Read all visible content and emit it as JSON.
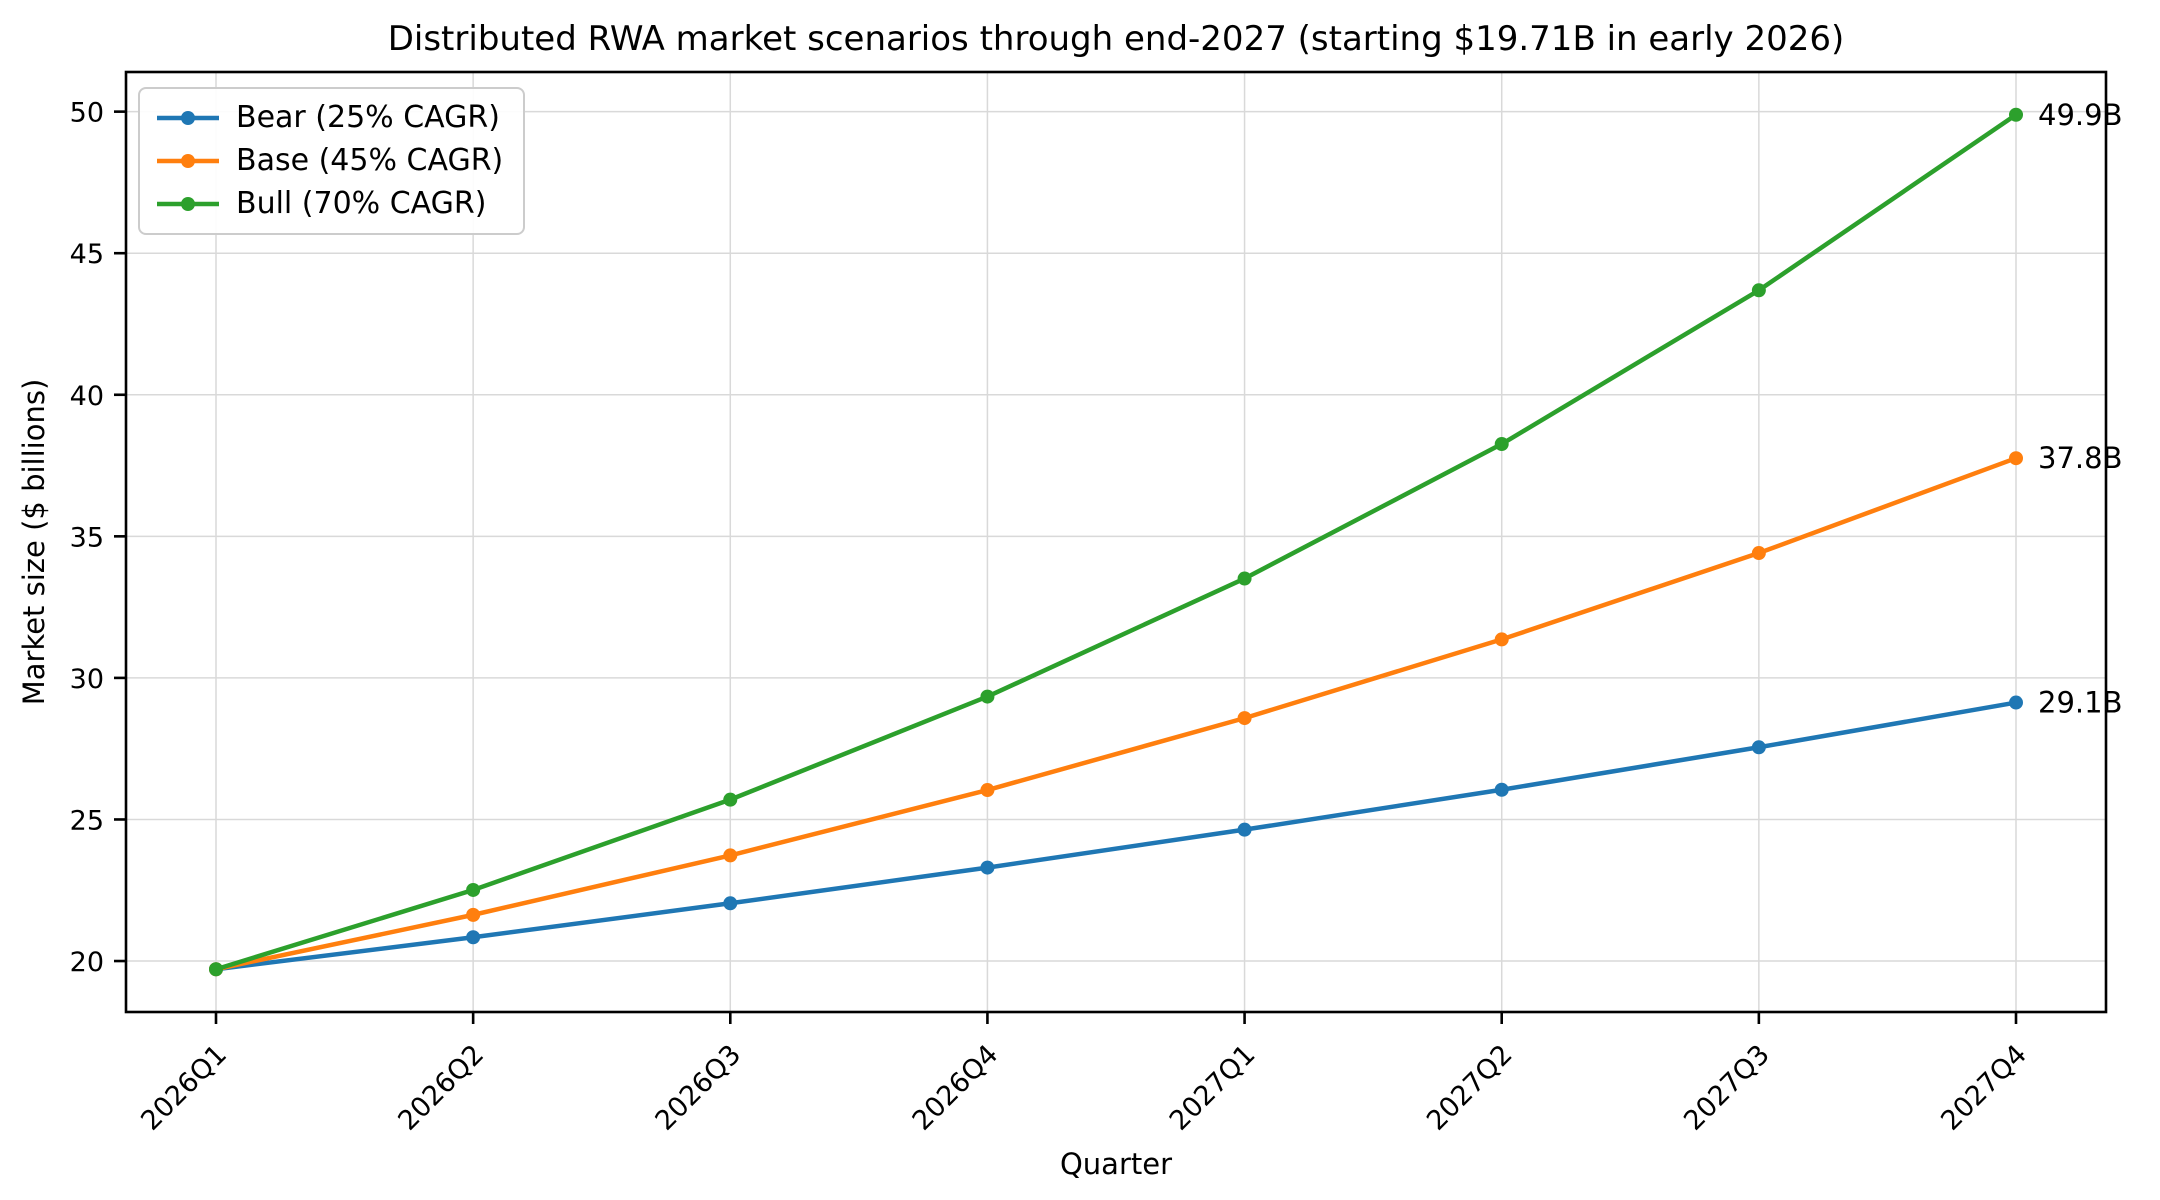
{
  "chart_data": {
    "type": "line",
    "title": "Distributed RWA market scenarios through end-2027 (starting $19.71B in early 2026)",
    "xlabel": "Quarter",
    "ylabel": "Market size ($ billions)",
    "categories": [
      "2026Q1",
      "2026Q2",
      "2026Q3",
      "2026Q4",
      "2027Q1",
      "2027Q2",
      "2027Q3",
      "2027Q4"
    ],
    "series": [
      {
        "name": "Bear (25% CAGR)",
        "slug": "bear",
        "color": "#1f77b4",
        "values": [
          19.71,
          20.84,
          22.04,
          23.3,
          24.64,
          26.05,
          27.55,
          29.13
        ],
        "end_label": "29.1B"
      },
      {
        "name": "Base (45% CAGR)",
        "slug": "base",
        "color": "#ff7f0e",
        "values": [
          19.71,
          21.63,
          23.73,
          26.04,
          28.58,
          31.36,
          34.41,
          37.76
        ],
        "end_label": "37.8B"
      },
      {
        "name": "Bull (70% CAGR)",
        "slug": "bull",
        "color": "#2ca02c",
        "values": [
          19.71,
          22.51,
          25.7,
          29.34,
          33.51,
          38.26,
          43.69,
          49.89
        ],
        "end_label": "49.9B"
      }
    ],
    "yticks": [
      20,
      25,
      30,
      35,
      40,
      45,
      50
    ],
    "ylim": [
      18.2,
      51.4
    ],
    "grid": true,
    "legend_position": "upper-left",
    "grid_color": "#d9d9d9",
    "spine_color": "#000000",
    "start_value_note": "$19.71B in early 2026"
  }
}
